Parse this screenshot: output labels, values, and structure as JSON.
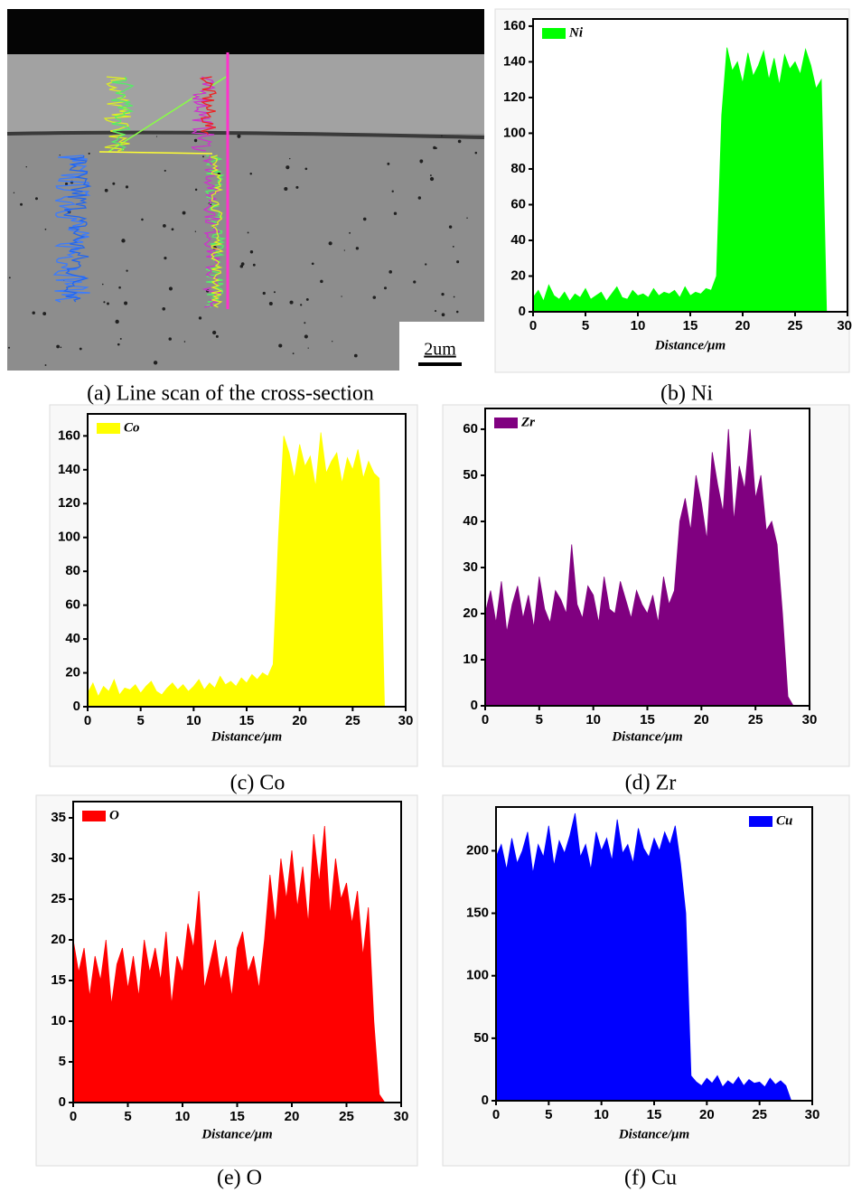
{
  "image": {
    "scale_label": "2um",
    "caption": "(a) Line scan of the cross-section"
  },
  "chart_data": [
    {
      "type": "area",
      "caption": "(b) Ni",
      "xlabel": "Distance/μm",
      "legend": "upper left",
      "x": [
        0,
        0.5,
        1,
        1.5,
        2,
        2.5,
        3,
        3.5,
        4,
        4.5,
        5,
        5.5,
        6,
        6.5,
        7,
        7.5,
        8,
        8.5,
        9,
        9.5,
        10,
        10.5,
        11,
        11.5,
        12,
        12.5,
        13,
        13.5,
        14,
        14.5,
        15,
        15.5,
        16,
        16.5,
        17,
        17.5,
        18,
        18.5,
        19,
        19.5,
        20,
        20.5,
        21,
        21.5,
        22,
        22.5,
        23,
        23.5,
        24,
        24.5,
        25,
        25.5,
        26,
        26.5,
        27,
        27.5,
        28,
        28.5
      ],
      "series": [
        {
          "name": "Ni",
          "color": "#00ff00",
          "values": [
            8,
            12,
            6,
            15,
            9,
            7,
            11,
            6,
            10,
            8,
            13,
            7,
            9,
            11,
            6,
            10,
            14,
            8,
            7,
            12,
            9,
            10,
            8,
            13,
            9,
            11,
            10,
            12,
            8,
            14,
            9,
            11,
            10,
            13,
            12,
            20,
            110,
            148,
            135,
            140,
            128,
            145,
            132,
            138,
            146,
            130,
            142,
            127,
            144,
            136,
            140,
            133,
            147,
            138,
            125,
            130,
            0,
            0
          ]
        }
      ],
      "xlim": [
        0,
        30
      ],
      "xticks": [
        0,
        5,
        10,
        15,
        20,
        25,
        30
      ],
      "ylim": [
        0,
        164
      ],
      "yticks": [
        0,
        20,
        40,
        60,
        80,
        100,
        120,
        140,
        160
      ]
    },
    {
      "type": "area",
      "caption": "(c) Co",
      "xlabel": "Distance/μm",
      "legend": "upper left",
      "x": [
        0,
        0.5,
        1,
        1.5,
        2,
        2.5,
        3,
        3.5,
        4,
        4.5,
        5,
        5.5,
        6,
        6.5,
        7,
        7.5,
        8,
        8.5,
        9,
        9.5,
        10,
        10.5,
        11,
        11.5,
        12,
        12.5,
        13,
        13.5,
        14,
        14.5,
        15,
        15.5,
        16,
        16.5,
        17,
        17.5,
        18,
        18.5,
        19,
        19.5,
        20,
        20.5,
        21,
        21.5,
        22,
        22.5,
        23,
        23.5,
        24,
        24.5,
        25,
        25.5,
        26,
        26.5,
        27,
        27.5,
        28,
        28.5
      ],
      "series": [
        {
          "name": "Co",
          "color": "#ffff00",
          "values": [
            8,
            14,
            6,
            12,
            9,
            16,
            7,
            11,
            10,
            13,
            8,
            12,
            15,
            9,
            7,
            11,
            14,
            10,
            13,
            9,
            12,
            16,
            10,
            14,
            11,
            18,
            13,
            15,
            12,
            17,
            14,
            19,
            16,
            20,
            18,
            25,
            100,
            160,
            150,
            135,
            155,
            142,
            148,
            130,
            162,
            138,
            145,
            150,
            132,
            147,
            140,
            152,
            135,
            145,
            138,
            135,
            0,
            0
          ]
        }
      ],
      "xlim": [
        0,
        30
      ],
      "xticks": [
        0,
        5,
        10,
        15,
        20,
        25,
        30
      ],
      "ylim": [
        0,
        173
      ],
      "yticks": [
        0,
        20,
        40,
        60,
        80,
        100,
        120,
        140,
        160
      ]
    },
    {
      "type": "area",
      "caption": "(d) Zr",
      "xlabel": "Distance/μm",
      "legend": "upper left",
      "x": [
        0,
        0.5,
        1,
        1.5,
        2,
        2.5,
        3,
        3.5,
        4,
        4.5,
        5,
        5.5,
        6,
        6.5,
        7,
        7.5,
        8,
        8.5,
        9,
        9.5,
        10,
        10.5,
        11,
        11.5,
        12,
        12.5,
        13,
        13.5,
        14,
        14.5,
        15,
        15.5,
        16,
        16.5,
        17,
        17.5,
        18,
        18.5,
        19,
        19.5,
        20,
        20.5,
        21,
        21.5,
        22,
        22.5,
        23,
        23.5,
        24,
        24.5,
        25,
        25.5,
        26,
        26.5,
        27,
        27.5,
        28,
        28.5
      ],
      "series": [
        {
          "name": "Zr",
          "color": "#800080",
          "values": [
            20,
            25,
            18,
            27,
            16,
            22,
            26,
            19,
            24,
            17,
            28,
            21,
            18,
            25,
            23,
            20,
            35,
            22,
            19,
            26,
            24,
            18,
            28,
            21,
            20,
            27,
            23,
            19,
            25,
            22,
            20,
            24,
            18,
            28,
            22,
            25,
            40,
            45,
            38,
            50,
            44,
            36,
            55,
            48,
            42,
            60,
            40,
            52,
            47,
            60,
            45,
            50,
            38,
            40,
            35,
            20,
            2,
            0
          ]
        }
      ],
      "xlim": [
        0,
        30
      ],
      "xticks": [
        0,
        5,
        10,
        15,
        20,
        25,
        30
      ],
      "ylim": [
        0,
        64.5
      ],
      "yticks": [
        0,
        10,
        20,
        30,
        40,
        50,
        60
      ]
    },
    {
      "type": "area",
      "caption": "(e) O",
      "xlabel": "Distance/μm",
      "legend": "upper left",
      "x": [
        0,
        0.5,
        1,
        1.5,
        2,
        2.5,
        3,
        3.5,
        4,
        4.5,
        5,
        5.5,
        6,
        6.5,
        7,
        7.5,
        8,
        8.5,
        9,
        9.5,
        10,
        10.5,
        11,
        11.5,
        12,
        12.5,
        13,
        13.5,
        14,
        14.5,
        15,
        15.5,
        16,
        16.5,
        17,
        17.5,
        18,
        18.5,
        19,
        19.5,
        20,
        20.5,
        21,
        21.5,
        22,
        22.5,
        23,
        23.5,
        24,
        24.5,
        25,
        25.5,
        26,
        26.5,
        27,
        27.5,
        28,
        28.5
      ],
      "series": [
        {
          "name": "O",
          "color": "#ff0000",
          "values": [
            20,
            16,
            19,
            13,
            18,
            15,
            20,
            12,
            17,
            19,
            14,
            18,
            13,
            20,
            16,
            19,
            15,
            21,
            12,
            18,
            16,
            22,
            19,
            26,
            14,
            17,
            20,
            15,
            18,
            13,
            19,
            21,
            16,
            18,
            14,
            20,
            28,
            22,
            30,
            25,
            31,
            24,
            29,
            22,
            33,
            27,
            34,
            23,
            30,
            25,
            27,
            22,
            26,
            18,
            24,
            10,
            1,
            0
          ]
        }
      ],
      "xlim": [
        0,
        30
      ],
      "xticks": [
        0,
        5,
        10,
        15,
        20,
        25,
        30
      ],
      "ylim": [
        0,
        37
      ],
      "yticks": [
        0,
        5,
        10,
        15,
        20,
        25,
        30,
        35
      ]
    },
    {
      "type": "area",
      "caption": "(f) Cu",
      "xlabel": "Distance/μm",
      "legend": "upper right",
      "x": [
        0,
        0.5,
        1,
        1.5,
        2,
        2.5,
        3,
        3.5,
        4,
        4.5,
        5,
        5.5,
        6,
        6.5,
        7,
        7.5,
        8,
        8.5,
        9,
        9.5,
        10,
        10.5,
        11,
        11.5,
        12,
        12.5,
        13,
        13.5,
        14,
        14.5,
        15,
        15.5,
        16,
        16.5,
        17,
        17.5,
        18,
        18.5,
        19,
        19.5,
        20,
        20.5,
        21,
        21.5,
        22,
        22.5,
        23,
        23.5,
        24,
        24.5,
        25,
        25.5,
        26,
        26.5,
        27,
        27.5,
        28,
        28.5
      ],
      "series": [
        {
          "name": "Cu",
          "color": "#0000ff",
          "values": [
            195,
            205,
            185,
            210,
            190,
            200,
            215,
            182,
            205,
            195,
            220,
            188,
            208,
            198,
            212,
            230,
            195,
            205,
            185,
            215,
            200,
            210,
            192,
            225,
            198,
            205,
            190,
            218,
            202,
            195,
            210,
            200,
            215,
            205,
            220,
            190,
            150,
            20,
            15,
            12,
            18,
            14,
            20,
            11,
            16,
            13,
            19,
            12,
            17,
            14,
            15,
            11,
            18,
            13,
            16,
            12,
            0,
            0
          ]
        }
      ],
      "xlim": [
        0,
        30
      ],
      "xticks": [
        0,
        5,
        10,
        15,
        20,
        25,
        30
      ],
      "ylim": [
        0,
        235
      ],
      "yticks": [
        0,
        50,
        100,
        150,
        200
      ]
    }
  ]
}
